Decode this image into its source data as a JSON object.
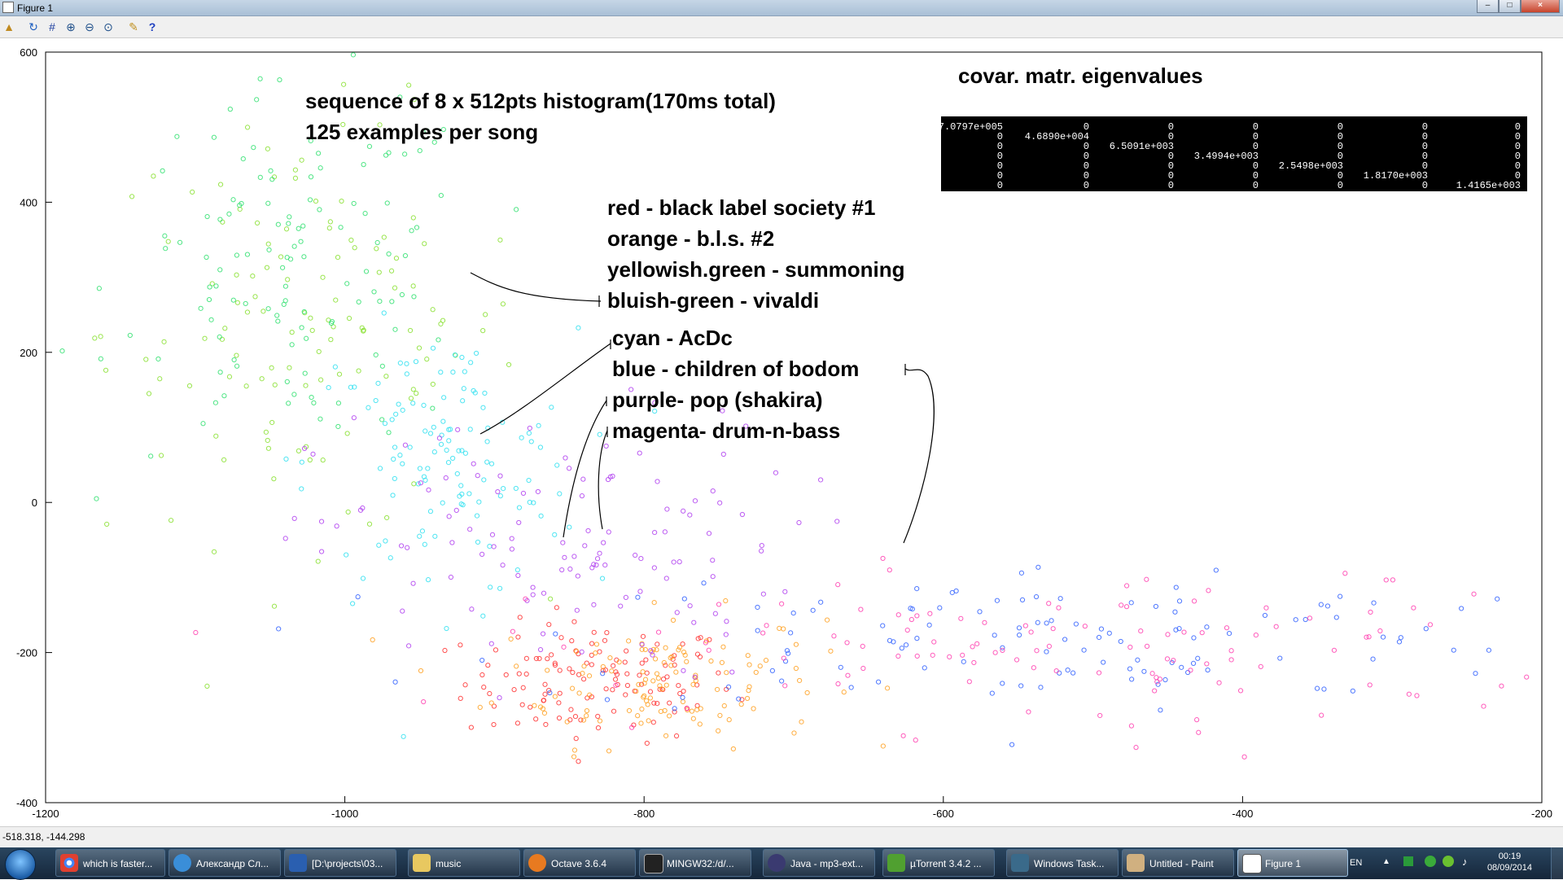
{
  "window": {
    "title": "Figure 1",
    "buttons": [
      "–",
      "□",
      "×"
    ]
  },
  "toolbar": {
    "icons": [
      "open-icon",
      "refresh-icon",
      "grid-icon",
      "zoom-in-icon",
      "zoom-out-icon",
      "zoom-reset-icon",
      "tools-icon",
      "help-icon"
    ]
  },
  "status": {
    "coords": "-518.318, -144.298"
  },
  "annotations": {
    "subtitle1": "sequence of 8 x 512pts histogram(170ms total)",
    "subtitle2": "125 examples per song",
    "eigen_title": "covar. matr. eigenvalues",
    "legend": [
      "red - black label society #1",
      "orange - b.l.s. #2",
      "yellowish.green - summoning",
      "bluish-green - vivaldi",
      "cyan - AcDc",
      "blue - children of bodom",
      "purple- pop (shakira)",
      "magenta- drum-n-bass"
    ],
    "eigen_matrix": [
      [
        "7.0797e+005",
        "0",
        "0",
        "0",
        "0",
        "0",
        "0"
      ],
      [
        "0",
        "4.6890e+004",
        "0",
        "0",
        "0",
        "0",
        "0"
      ],
      [
        "0",
        "0",
        "6.5091e+003",
        "0",
        "0",
        "0",
        "0"
      ],
      [
        "0",
        "0",
        "0",
        "3.4994e+003",
        "0",
        "0",
        "0"
      ],
      [
        "0",
        "0",
        "0",
        "0",
        "2.5498e+003",
        "0",
        "0"
      ],
      [
        "0",
        "0",
        "0",
        "0",
        "0",
        "1.8170e+003",
        "0"
      ],
      [
        "0",
        "0",
        "0",
        "0",
        "0",
        "0",
        "1.4165e+003"
      ]
    ]
  },
  "chart_data": {
    "type": "scatter",
    "title": "",
    "xlabel": "",
    "ylabel": "",
    "xlim": [
      -1200,
      -200
    ],
    "ylim": [
      -400,
      600
    ],
    "xticks": [
      -1200,
      -1000,
      -800,
      -600,
      -400,
      -200
    ],
    "yticks": [
      -400,
      -200,
      0,
      200,
      400,
      600
    ],
    "marker": "circle-open",
    "points_per_series": 125,
    "series": [
      {
        "name": "red - black label society #1",
        "color": "#ff3030",
        "center": [
          -830,
          -240
        ],
        "spread": [
          45,
          40
        ],
        "count": 125
      },
      {
        "name": "orange - b.l.s. #2",
        "color": "#ffa020",
        "center": [
          -790,
          -235
        ],
        "spread": [
          55,
          45
        ],
        "count": 125
      },
      {
        "name": "yellowish.green - summoning",
        "color": "#88e030",
        "center": [
          -1020,
          230
        ],
        "spread": [
          70,
          140
        ],
        "count": 125
      },
      {
        "name": "bluish-green - vivaldi",
        "color": "#30e070",
        "center": [
          -1030,
          310
        ],
        "spread": [
          60,
          120
        ],
        "count": 125
      },
      {
        "name": "cyan - AcDc",
        "color": "#30e0f0",
        "center": [
          -935,
          50
        ],
        "spread": [
          45,
          90
        ],
        "count": 125
      },
      {
        "name": "blue - children of bodom",
        "color": "#3060ff",
        "center": [
          -520,
          -180
        ],
        "spread": [
          180,
          50
        ],
        "count": 125
      },
      {
        "name": "purple- pop (shakira)",
        "color": "#b040f0",
        "center": [
          -860,
          -60
        ],
        "spread": [
          80,
          90
        ],
        "count": 125
      },
      {
        "name": "magenta- drum-n-bass",
        "color": "#ff40b0",
        "center": [
          -500,
          -195
        ],
        "spread": [
          200,
          55
        ],
        "count": 125
      }
    ]
  }
}
